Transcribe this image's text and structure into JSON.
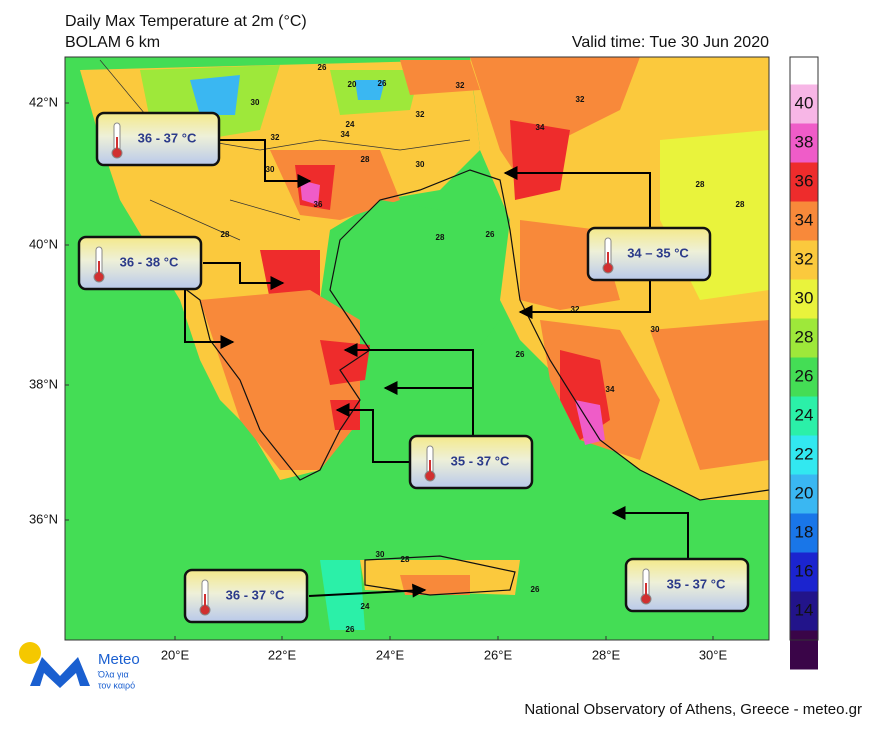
{
  "header": {
    "title": "Daily Max Temperature at 2m (°C)",
    "subtitle": "BOLAM 6 km",
    "valid_time": "Valid time: Tue 30 Jun 2020"
  },
  "map": {
    "lat_labels": [
      "42°N",
      "40°N",
      "38°N",
      "36°N"
    ],
    "lon_labels": [
      "20°E",
      "22°E",
      "24°E",
      "26°E",
      "28°E",
      "30°E"
    ],
    "map_labels": [
      26,
      20,
      26,
      32,
      30,
      32,
      34,
      32,
      24,
      28,
      30,
      36,
      26,
      28,
      32,
      34,
      28,
      32,
      30,
      34,
      28,
      26,
      30,
      28,
      26,
      32,
      24,
      26,
      28,
      30
    ]
  },
  "colorbar": {
    "levels": [
      40,
      38,
      36,
      34,
      32,
      30,
      28,
      26,
      24,
      22,
      20,
      18,
      16,
      14
    ],
    "colors": [
      "#ffffff",
      "#f7b6e6",
      "#ef5cc8",
      "#ee2c2c",
      "#f8893a",
      "#fbc93d",
      "#e9f33c",
      "#9ee83a",
      "#44dd55",
      "#2bf0a8",
      "#32e8f0",
      "#3ab7f2",
      "#1976e8",
      "#1b24cf",
      "#22148a",
      "#3a0548"
    ]
  },
  "callouts": [
    {
      "label": "36 - 37 °C"
    },
    {
      "label": "36 - 38 °C"
    },
    {
      "label": "34 – 35 °C"
    },
    {
      "label": "35 - 37 °C"
    },
    {
      "label": "36 - 37 °C"
    },
    {
      "label": "35 - 37 °C"
    }
  ],
  "logo": {
    "name": "Meteo",
    "tagline_1": "Όλα για",
    "tagline_2": "τον καιρό"
  },
  "footer": "National Observatory of Athens, Greece - meteo.gr"
}
